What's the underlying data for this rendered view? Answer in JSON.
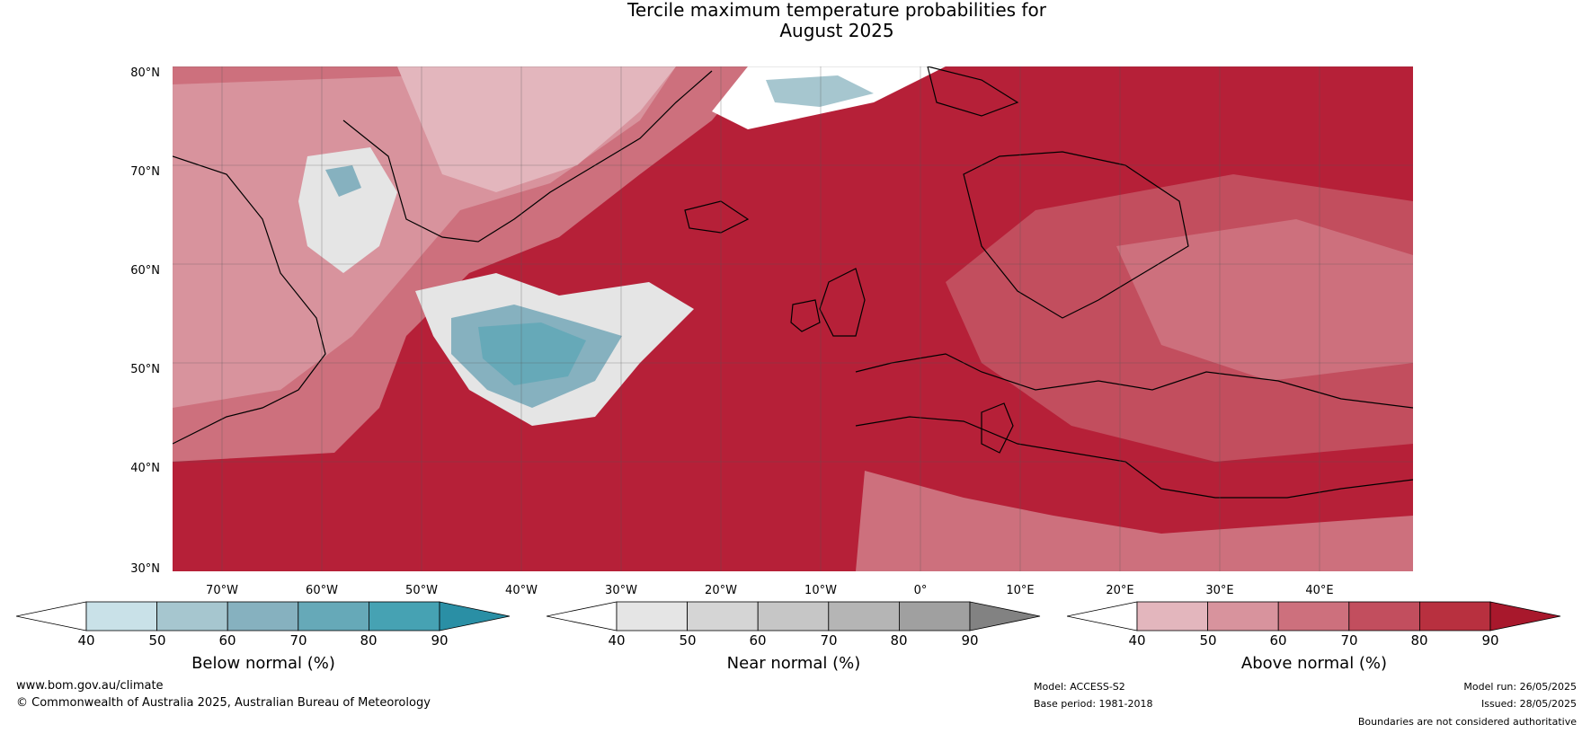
{
  "title": {
    "line1": "Tercile maximum temperature probabilities for",
    "line2": "August 2025"
  },
  "map": {
    "lat_labels": [
      "80°N",
      "70°N",
      "60°N",
      "50°N",
      "40°N",
      "30°N"
    ],
    "lon_labels": [
      "70°W",
      "60°W",
      "50°W",
      "40°W",
      "30°W",
      "20°W",
      "10°W",
      "0°",
      "10°E",
      "20°E",
      "30°E",
      "40°E"
    ]
  },
  "colorbars": [
    {
      "label": "Below normal (%)",
      "ticks": [
        "40",
        "50",
        "60",
        "70",
        "80",
        "90"
      ],
      "colors": [
        "#ffffff",
        "#c9e1e8",
        "#a6c6cf",
        "#86b1bf",
        "#66a9b8",
        "#46a2b3",
        "#2a8fa5"
      ]
    },
    {
      "label": "Near normal (%)",
      "ticks": [
        "40",
        "50",
        "60",
        "70",
        "80",
        "90"
      ],
      "colors": [
        "#ffffff",
        "#e5e5e5",
        "#d5d5d5",
        "#c6c6c6",
        "#b5b5b5",
        "#a0a0a0",
        "#828282"
      ]
    },
    {
      "label": "Above normal (%)",
      "ticks": [
        "40",
        "50",
        "60",
        "70",
        "80",
        "90"
      ],
      "colors": [
        "#ffffff",
        "#e3b6bd",
        "#d8939d",
        "#cd707d",
        "#c24e5e",
        "#b8303f",
        "#a8182c"
      ]
    }
  ],
  "footer": {
    "website": "www.bom.gov.au/climate",
    "copyright": "© Commonwealth of Australia 2025, Australian Bureau of Meteorology",
    "model": "Model: ACCESS-S2",
    "base_period": "Base period: 1981-2018",
    "model_run": "Model run: 26/05/2025",
    "issued": "Issued: 28/05/2025",
    "disclaimer": "Boundaries are not considered authoritative"
  }
}
